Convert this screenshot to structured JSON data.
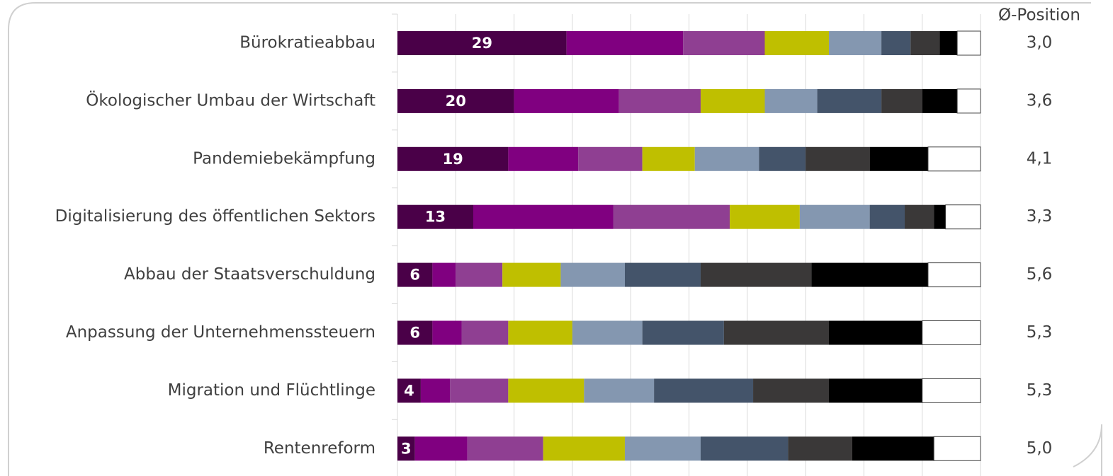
{
  "chart_data": {
    "type": "stacked_bar_horizontal",
    "categories": [
      "Bürokratieabbau",
      "Ökologischer Umbau der Wirtschaft",
      "Pandemiebekämpfung",
      "Digitalisierung des öffentlichen Sektors",
      "Abbau der Staatsverschuldung",
      "Anpassung der Unternehmenssteuern",
      "Migration und Flüchtlinge",
      "Rentenreform"
    ],
    "series": [
      {
        "color": "#4a0048",
        "values": [
          29,
          20,
          19,
          13,
          6,
          6,
          4,
          3
        ],
        "show_labels": true
      },
      {
        "color": "#800080",
        "values": [
          20,
          18,
          12,
          24,
          4,
          5,
          5,
          9
        ]
      },
      {
        "color": "#8f3f92",
        "values": [
          14,
          14,
          11,
          20,
          8,
          8,
          10,
          13
        ]
      },
      {
        "color": "#bfbf00",
        "values": [
          11,
          11,
          9,
          12,
          10,
          11,
          13,
          14
        ]
      },
      {
        "color": "#8497b0",
        "values": [
          9,
          9,
          11,
          12,
          11,
          12,
          12,
          13
        ]
      },
      {
        "color": "#44546a",
        "values": [
          5,
          11,
          8,
          6,
          13,
          14,
          17,
          15
        ]
      },
      {
        "color": "#3a3838",
        "values": [
          5,
          7,
          11,
          5,
          19,
          18,
          13,
          11
        ]
      },
      {
        "color": "#000000",
        "values": [
          3,
          6,
          10,
          2,
          20,
          16,
          16,
          14
        ]
      },
      {
        "color": "#ffffff",
        "values": [
          4,
          4,
          9,
          6,
          9,
          10,
          10,
          8
        ]
      }
    ],
    "xlim": [
      0,
      100
    ],
    "xticks": [
      0,
      10,
      20,
      30,
      40,
      50,
      60,
      70,
      80,
      90,
      100
    ],
    "grid": true,
    "avg_title": "Ø-Position",
    "avg_labels": [
      "3,0",
      "3,6",
      "4,1",
      "3,3",
      "5,6",
      "5,3",
      "5,3",
      "5,0"
    ]
  }
}
